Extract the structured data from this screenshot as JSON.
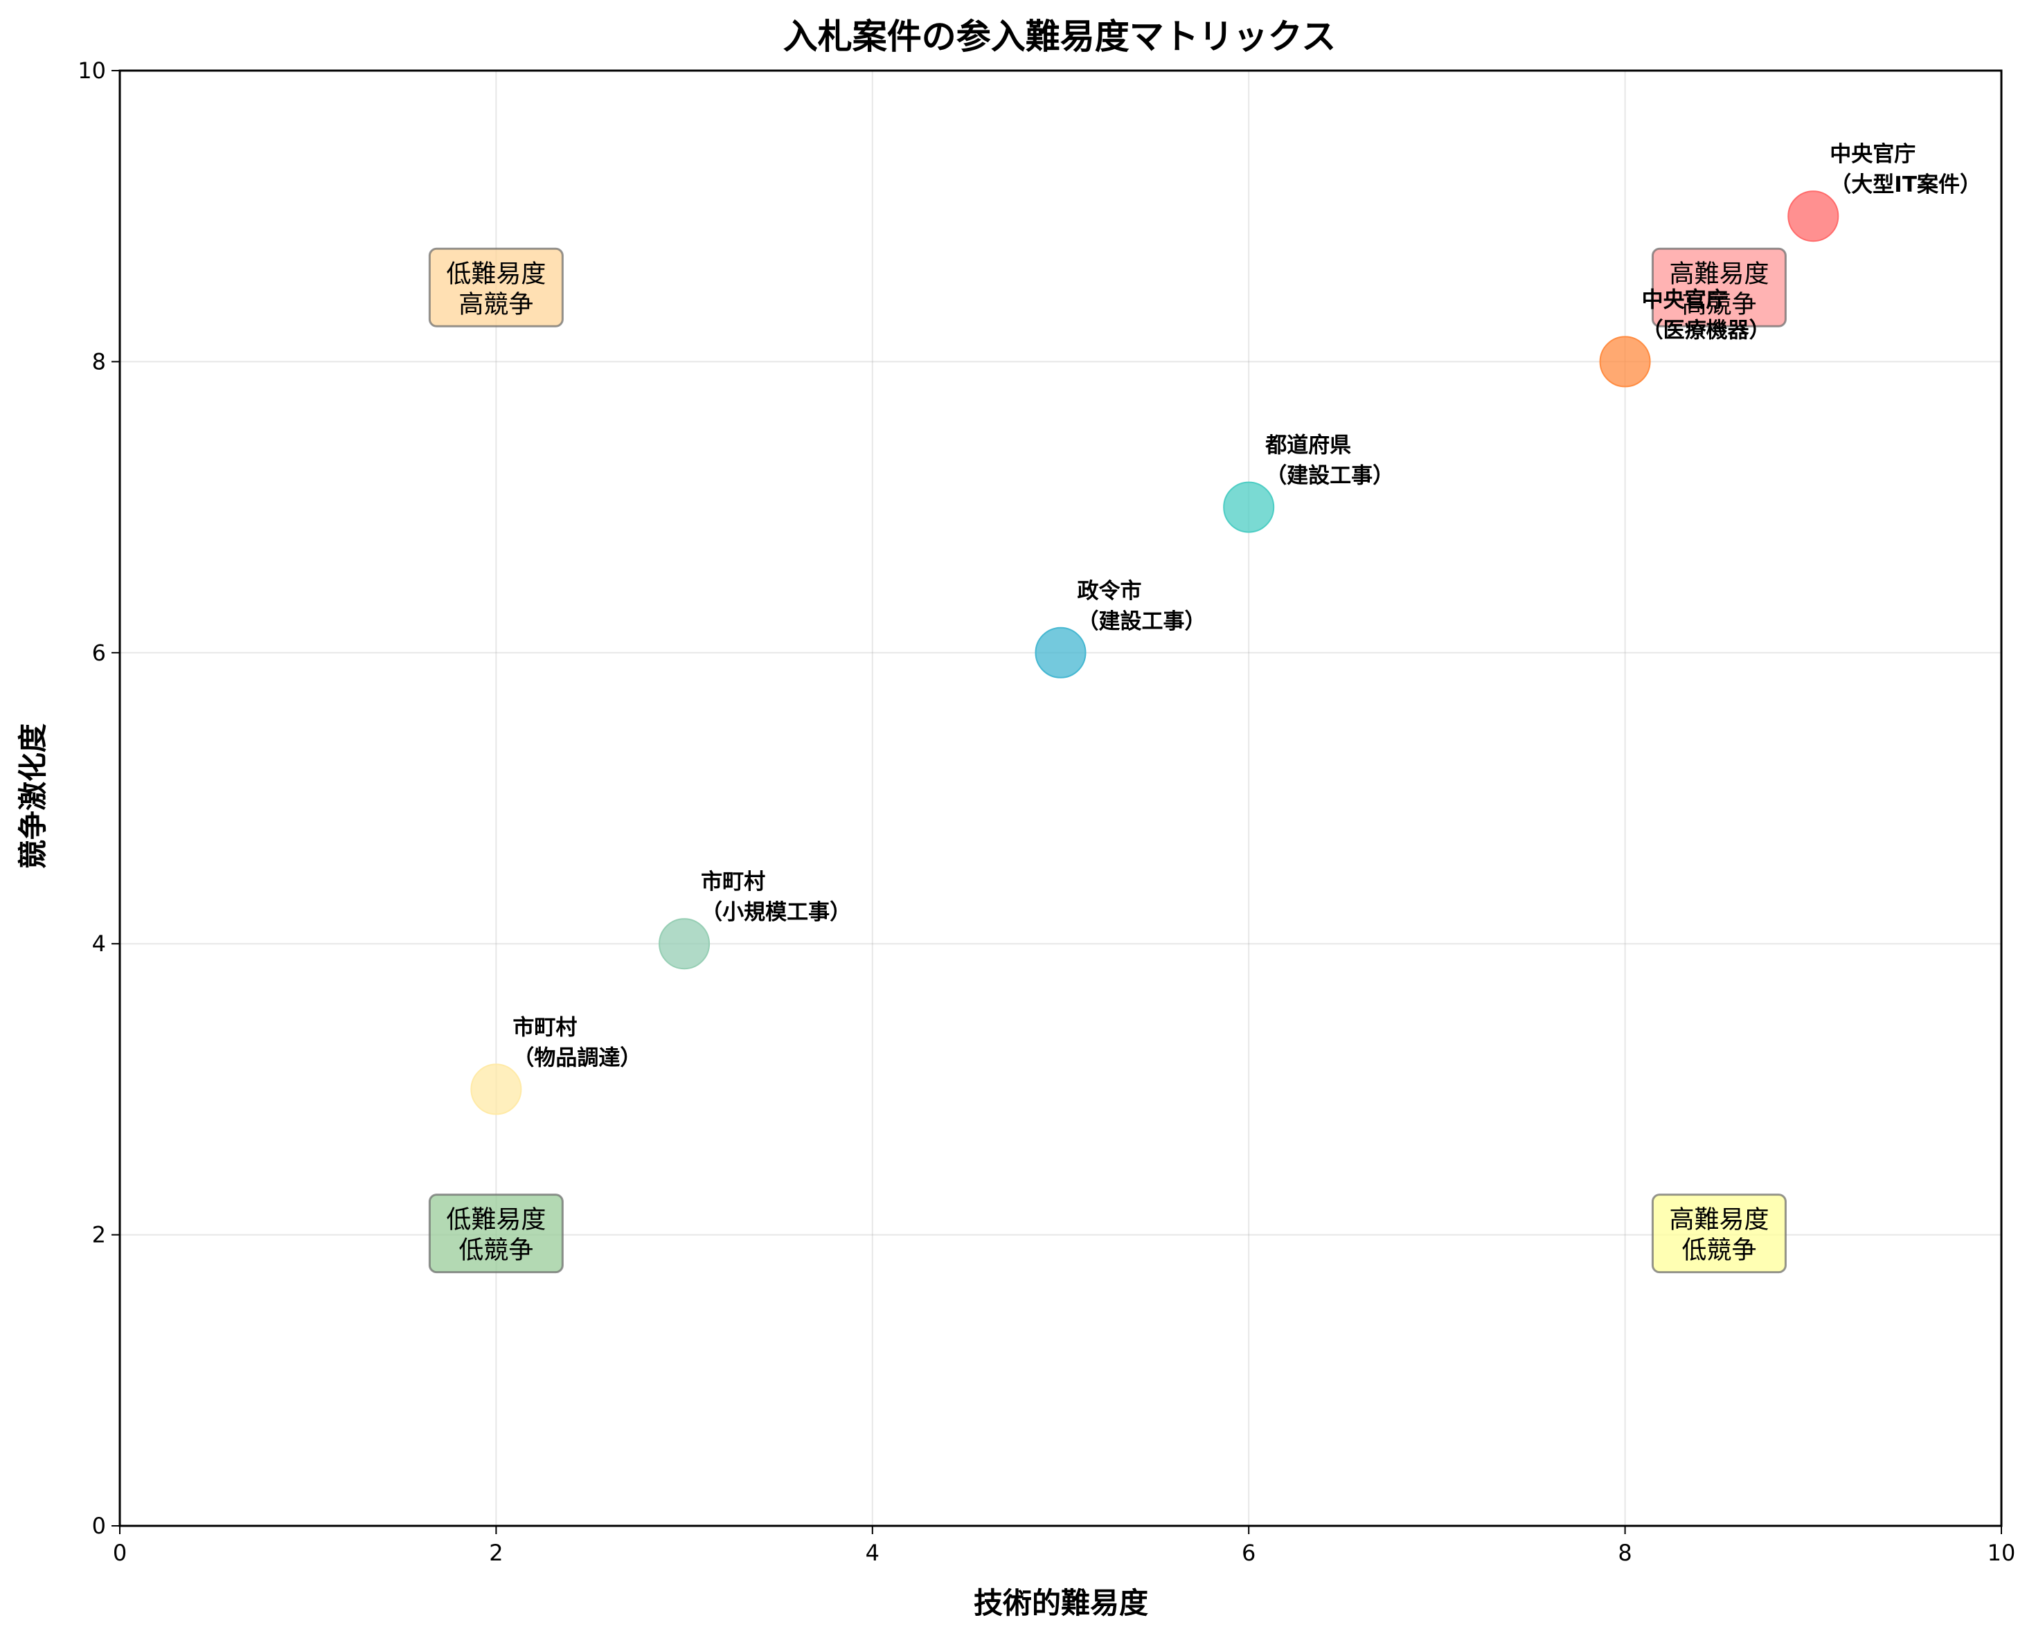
{
  "chart_data": {
    "type": "scatter",
    "title": "入札案件の参入難易度マトリックス",
    "xlabel": "技術的難易度",
    "ylabel": "競争激化度",
    "xlim": [
      0,
      10
    ],
    "ylim": [
      0,
      10
    ],
    "xticks": [
      "0",
      "2",
      "4",
      "6",
      "8",
      "10"
    ],
    "yticks": [
      "0",
      "2",
      "4",
      "6",
      "8",
      "10"
    ],
    "grid": true,
    "points": [
      {
        "line1": "中央官庁",
        "line2": "（大型IT案件）",
        "x": 9,
        "y": 9,
        "color": "#ff6b6b"
      },
      {
        "line1": "中央官庁",
        "line2": "（医療機器）",
        "x": 8,
        "y": 8,
        "color": "#ff8c42"
      },
      {
        "line1": "都道府県",
        "line2": "（建設工事）",
        "x": 6,
        "y": 7,
        "color": "#4ecdc4"
      },
      {
        "line1": "政令市",
        "line2": "（建設工事）",
        "x": 5,
        "y": 6,
        "color": "#45b7d1"
      },
      {
        "line1": "市町村",
        "line2": "（小規模工事）",
        "x": 3,
        "y": 4,
        "color": "#96ceb4"
      },
      {
        "line1": "市町村",
        "line2": "（物品調達）",
        "x": 2,
        "y": 3,
        "color": "#ffeaa7"
      }
    ],
    "quadrants": [
      {
        "line1": "低難易度",
        "line2": "高競争",
        "x": 2,
        "y": 8.5,
        "color": "#ffd699"
      },
      {
        "line1": "高難易度",
        "line2": "高競争",
        "x": 8.5,
        "y": 8.5,
        "color": "#ff9999"
      },
      {
        "line1": "低難易度",
        "line2": "低競争",
        "x": 2,
        "y": 2,
        "color": "#99cc99"
      },
      {
        "line1": "高難易度",
        "line2": "低競争",
        "x": 8.5,
        "y": 2,
        "color": "#ffff99"
      }
    ]
  }
}
